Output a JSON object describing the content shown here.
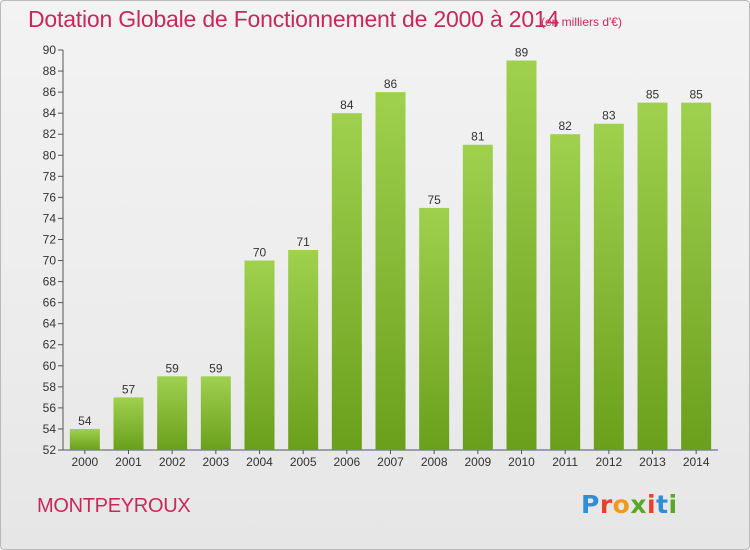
{
  "header": {
    "title": "Dotation Globale de Fonctionnement de 2000 à 2014",
    "unit": "(en milliers d'€)"
  },
  "footer": {
    "town": "MONTPEYROUX",
    "brand": "Proxiti"
  },
  "colors": {
    "title": "#c8285a",
    "bar_light": "#9fd14f",
    "bar_dark": "#6a9f1c",
    "brand_letters": [
      "#2e8ed6",
      "#e8402c",
      "#f09a1d",
      "#5aa728",
      "#e8402c",
      "#2e8ed6",
      "#5aa728"
    ]
  },
  "chart_data": {
    "type": "bar",
    "title": "Dotation Globale de Fonctionnement de 2000 à 2014",
    "xlabel": "",
    "ylabel": "",
    "categories": [
      "2000",
      "2001",
      "2002",
      "2003",
      "2004",
      "2005",
      "2006",
      "2007",
      "2008",
      "2009",
      "2010",
      "2011",
      "2012",
      "2013",
      "2014"
    ],
    "values": [
      54,
      57,
      59,
      59,
      70,
      71,
      84,
      86,
      75,
      81,
      89,
      82,
      83,
      85,
      85
    ],
    "ylim": [
      52,
      90
    ],
    "yticks": [
      52,
      54,
      56,
      58,
      60,
      62,
      64,
      66,
      68,
      70,
      72,
      74,
      76,
      78,
      80,
      82,
      84,
      86,
      88,
      90
    ],
    "grid": false,
    "data_labels": true
  }
}
